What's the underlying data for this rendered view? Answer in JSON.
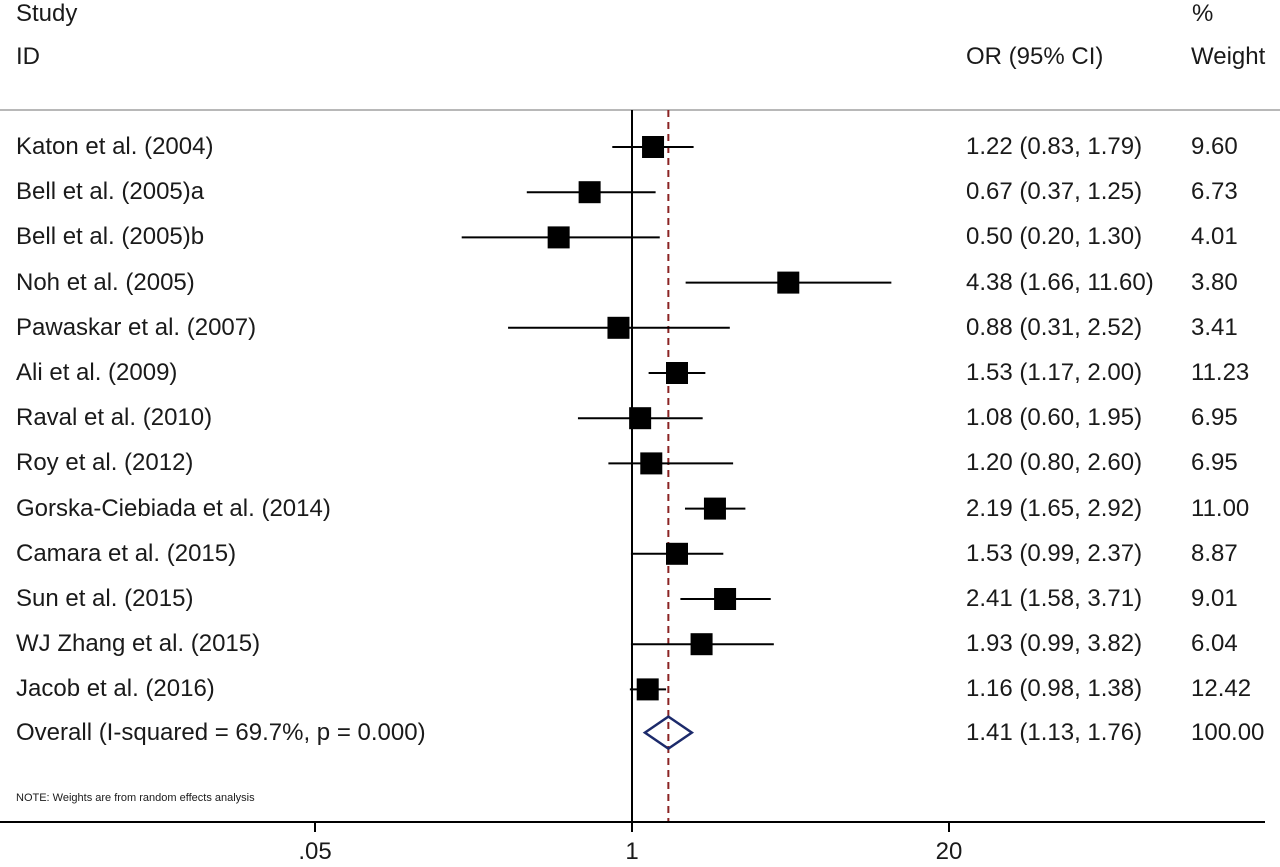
{
  "chart_data": {
    "type": "forest",
    "header": {
      "col1_line1": "Study",
      "col1_line2": "ID",
      "col2": "OR (95% CI)",
      "col3_line1": "%",
      "col3_line2": "Weight"
    },
    "x_scale": "log",
    "x_ticks": [
      0.05,
      1,
      20
    ],
    "x_tick_labels": [
      ".05",
      "1",
      "20"
    ],
    "xlim": [
      0.05,
      20
    ],
    "null_line": 1,
    "studies": [
      {
        "label": "Katon et al. (2004)",
        "or": 1.22,
        "lo": 0.83,
        "hi": 1.79,
        "ci_text": "1.22 (0.83, 1.79)",
        "weight": 9.6,
        "weight_text": "9.60"
      },
      {
        "label": "Bell et al. (2005)a",
        "or": 0.67,
        "lo": 0.37,
        "hi": 1.25,
        "ci_text": "0.67 (0.37, 1.25)",
        "weight": 6.73,
        "weight_text": "6.73"
      },
      {
        "label": "Bell et al. (2005)b",
        "or": 0.5,
        "lo": 0.2,
        "hi": 1.3,
        "ci_text": "0.50 (0.20, 1.30)",
        "weight": 4.01,
        "weight_text": "4.01"
      },
      {
        "label": "Noh et al. (2005)",
        "or": 4.38,
        "lo": 1.66,
        "hi": 11.6,
        "ci_text": "4.38 (1.66, 11.60)",
        "weight": 3.8,
        "weight_text": "3.80"
      },
      {
        "label": "Pawaskar et al. (2007)",
        "or": 0.88,
        "lo": 0.31,
        "hi": 2.52,
        "ci_text": "0.88 (0.31, 2.52)",
        "weight": 3.41,
        "weight_text": "3.41"
      },
      {
        "label": "Ali et al. (2009)",
        "or": 1.53,
        "lo": 1.17,
        "hi": 2.0,
        "ci_text": "1.53 (1.17, 2.00)",
        "weight": 11.23,
        "weight_text": "11.23"
      },
      {
        "label": "Raval et al. (2010)",
        "or": 1.08,
        "lo": 0.6,
        "hi": 1.95,
        "ci_text": "1.08 (0.60, 1.95)",
        "weight": 6.95,
        "weight_text": "6.95"
      },
      {
        "label": "Roy et al. (2012)",
        "or": 1.2,
        "lo": 0.8,
        "hi": 2.6,
        "ci_text": "1.20 (0.80, 2.60)",
        "weight": 6.95,
        "weight_text": "6.95"
      },
      {
        "label": "Gorska-Ciebiada et al. (2014)",
        "or": 2.19,
        "lo": 1.65,
        "hi": 2.92,
        "ci_text": "2.19 (1.65, 2.92)",
        "weight": 11.0,
        "weight_text": "11.00"
      },
      {
        "label": "Camara et al. (2015)",
        "or": 1.53,
        "lo": 0.99,
        "hi": 2.37,
        "ci_text": "1.53 (0.99, 2.37)",
        "weight": 8.87,
        "weight_text": "8.87"
      },
      {
        "label": "Sun et al. (2015)",
        "or": 2.41,
        "lo": 1.58,
        "hi": 3.71,
        "ci_text": "2.41 (1.58, 3.71)",
        "weight": 9.01,
        "weight_text": "9.01"
      },
      {
        "label": "WJ Zhang et al. (2015)",
        "or": 1.93,
        "lo": 0.99,
        "hi": 3.82,
        "ci_text": "1.93 (0.99, 3.82)",
        "weight": 6.04,
        "weight_text": "6.04"
      },
      {
        "label": "Jacob et al. (2016)",
        "or": 1.16,
        "lo": 0.98,
        "hi": 1.38,
        "ci_text": "1.16 (0.98, 1.38)",
        "weight": 12.42,
        "weight_text": "12.42"
      }
    ],
    "overall": {
      "label": "Overall  (I-squared = 69.7%, p = 0.000)",
      "or": 1.41,
      "lo": 1.13,
      "hi": 1.76,
      "ci_text": "1.41 (1.13, 1.76)",
      "weight_text": "100.00"
    },
    "note": "NOTE: Weights are from random effects analysis",
    "colors": {
      "marker": "#000000",
      "diamond": "#1c2a6b",
      "ref_line": "#8b2323",
      "rule": "#b8b8b8"
    }
  }
}
